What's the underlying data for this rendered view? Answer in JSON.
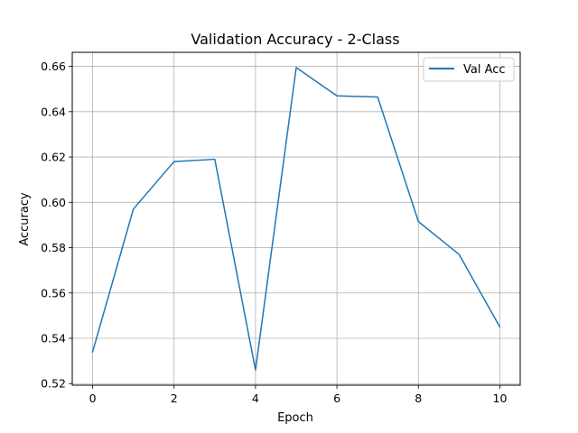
{
  "chart_data": {
    "type": "line",
    "title": "Validation Accuracy - 2-Class",
    "xlabel": "Epoch",
    "ylabel": "Accuracy",
    "x": [
      0,
      1,
      2,
      3,
      4,
      5,
      6,
      7,
      8,
      9,
      10
    ],
    "series": [
      {
        "name": "Val Acc",
        "color": "#1f77b4",
        "values": [
          0.534,
          0.597,
          0.618,
          0.619,
          0.526,
          0.6595,
          0.647,
          0.6465,
          0.5915,
          0.577,
          0.545
        ]
      }
    ],
    "xticks": [
      0,
      2,
      4,
      6,
      8,
      10
    ],
    "yticks": [
      0.52,
      0.54,
      0.56,
      0.58,
      0.6,
      0.62,
      0.64,
      0.66
    ],
    "ytick_labels": [
      "0.52",
      "0.54",
      "0.56",
      "0.58",
      "0.60",
      "0.62",
      "0.64",
      "0.66"
    ],
    "xlim": [
      -0.5,
      10.5
    ],
    "ylim": [
      0.5193,
      0.6662
    ],
    "grid": true,
    "legend_position": "upper right"
  }
}
